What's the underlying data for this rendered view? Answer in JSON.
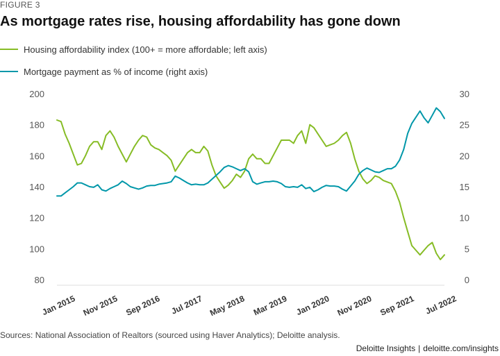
{
  "figure_label": "FIGURE 3",
  "title": "As mortgage rates rise, housing affordability has gone down",
  "source": "Sources: National Association of Realtors (sourced using Haver Analytics); Deloitte analysis.",
  "footer": {
    "brand": "Deloitte Insights",
    "separator": "|",
    "url": "deloitte.com/insights"
  },
  "colors": {
    "affordability": "#86bc25",
    "mortgage": "#0097a9",
    "axis_text": "#555555"
  },
  "chart_data": {
    "type": "line",
    "x_tick_labels": [
      "Jan 2015",
      "Nov 2015",
      "Sep 2016",
      "Jul 2017",
      "May 2018",
      "Mar 2019",
      "Jan 2020",
      "Nov 2020",
      "Sep 2021",
      "Jul 2022"
    ],
    "ylim_left": [
      80,
      200
    ],
    "yticks_left": [
      80,
      100,
      120,
      140,
      160,
      180,
      200
    ],
    "ylim_right": [
      0,
      30
    ],
    "yticks_right": [
      0,
      5,
      10,
      15,
      20,
      25,
      30
    ],
    "grid": false,
    "legend_placement": "top-left",
    "series": [
      {
        "name": "Housing affordability index (100+ = more affordable; left axis)",
        "axis": "left",
        "values": [
          183,
          182,
          174,
          168,
          161,
          154,
          155,
          160,
          166,
          169,
          169,
          164,
          173,
          176,
          172,
          166,
          161,
          156,
          161,
          166,
          170,
          173,
          172,
          167,
          165,
          164,
          162,
          160,
          157,
          150,
          154,
          158,
          162,
          164,
          162,
          162,
          166,
          163,
          154,
          147,
          143,
          139,
          141,
          144,
          148,
          146,
          150,
          158,
          161,
          158,
          158,
          155,
          155,
          160,
          165,
          170,
          170,
          170,
          168,
          173,
          176,
          168,
          180,
          178,
          174,
          170,
          166,
          167,
          168,
          170,
          173,
          175,
          168,
          158,
          150,
          145,
          142,
          144,
          147,
          146,
          144,
          143,
          142,
          137,
          130,
          120,
          111,
          102,
          99,
          96,
          99,
          102,
          104,
          97,
          93,
          96
        ]
      },
      {
        "name": "Mortgage payment as % of income (right axis)",
        "axis": "right",
        "values": [
          13.5,
          13.5,
          14.0,
          14.5,
          15.0,
          15.6,
          15.6,
          15.3,
          15.0,
          14.9,
          15.3,
          14.5,
          14.3,
          14.7,
          15.0,
          15.3,
          15.9,
          15.5,
          15.0,
          14.8,
          14.6,
          14.8,
          15.1,
          15.2,
          15.2,
          15.4,
          15.5,
          15.6,
          15.8,
          16.7,
          16.4,
          16.0,
          15.6,
          15.3,
          15.4,
          15.3,
          15.3,
          15.6,
          16.2,
          16.8,
          17.4,
          18.1,
          18.4,
          18.2,
          17.9,
          17.6,
          17.9,
          17.4,
          15.8,
          15.4,
          15.6,
          15.8,
          15.8,
          15.9,
          15.8,
          15.5,
          15.0,
          14.9,
          15.0,
          14.9,
          15.3,
          14.7,
          14.9,
          14.2,
          14.5,
          14.9,
          15.2,
          15.1,
          15.1,
          15.0,
          14.6,
          14.3,
          15.1,
          15.9,
          17.0,
          17.6,
          18.0,
          17.7,
          17.4,
          17.3,
          17.6,
          17.9,
          17.9,
          18.3,
          19.3,
          21.0,
          23.6,
          25.2,
          26.2,
          27.2,
          26.1,
          25.3,
          26.5,
          27.7,
          27.1,
          26.0
        ]
      }
    ]
  }
}
